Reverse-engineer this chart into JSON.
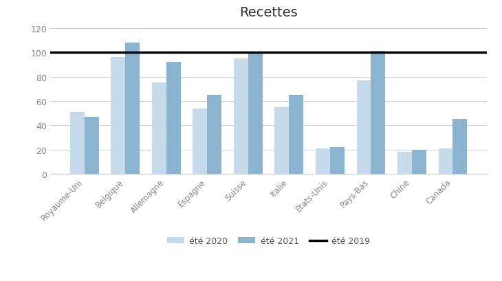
{
  "title": "Recettes",
  "categories": [
    "Royaume-Uni",
    "Belgique",
    "Allemagne",
    "Espagne",
    "Suisse",
    "Italie",
    "Etats-Unis",
    "Pays-Bas",
    "Chine",
    "Canada"
  ],
  "ete2020": [
    51,
    96,
    75,
    54,
    95,
    55,
    21,
    77,
    18,
    21
  ],
  "ete2021": [
    47,
    108,
    92,
    65,
    100,
    65,
    22,
    101,
    20,
    45
  ],
  "ete2019_line": 100,
  "color2020": "#c5daea",
  "color2021": "#8ab4d0",
  "color_line": "black",
  "ylim": [
    0,
    125
  ],
  "yticks": [
    0,
    20,
    40,
    60,
    80,
    100,
    120
  ],
  "legend_labels": [
    "été 2020",
    "été 2021",
    "été 2019"
  ],
  "bar_width": 0.35,
  "title_fontsize": 14,
  "background_color": "#ffffff",
  "tick_color": "#888888",
  "grid_color": "#d0d0d0",
  "spine_color": "#cccccc"
}
